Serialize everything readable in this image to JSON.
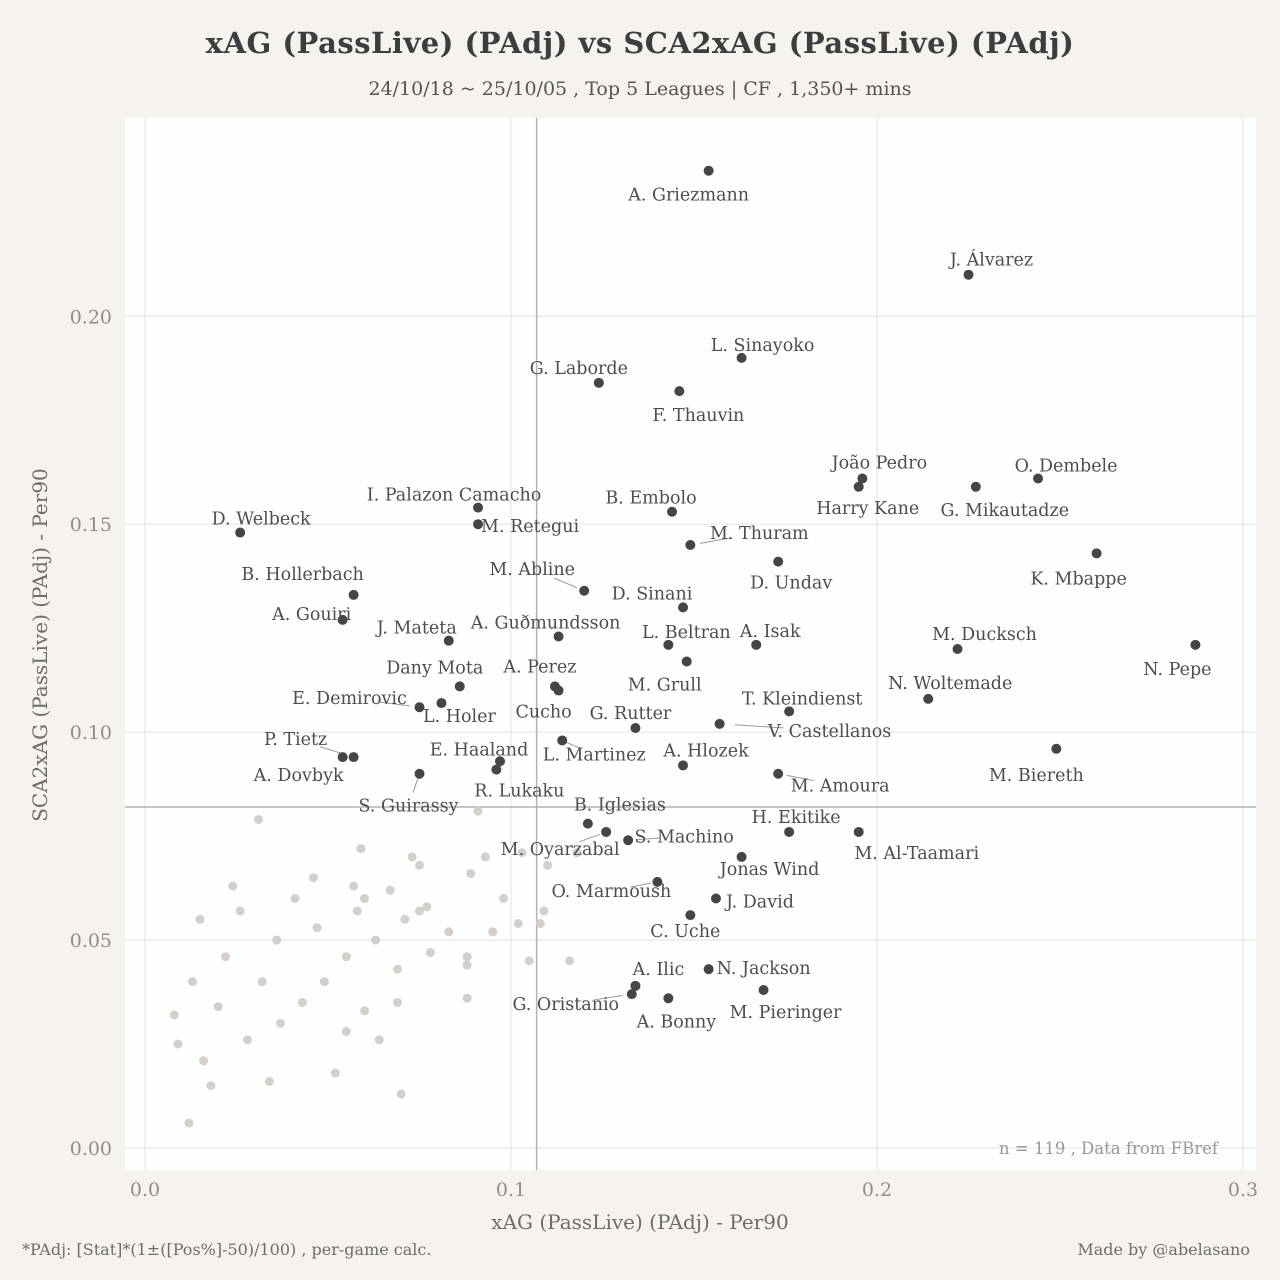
{
  "chart_data": {
    "type": "scatter",
    "title": "xAG (PassLive) (PAdj)  vs  SCA2xAG (PassLive) (PAdj)",
    "subtitle": "24/10/18 ~ 25/10/05 , Top 5 Leagues | CF , 1,350+ mins",
    "xlabel": "xAG (PassLive) (PAdj)  -  Per90",
    "ylabel": "SCA2xAG (PassLive) (PAdj)  -  Per90",
    "xlim": [
      0,
      0.3
    ],
    "ylim": [
      0,
      0.246
    ],
    "xticks": [
      0,
      0.1,
      0.2,
      0.3
    ],
    "xtick_labels": [
      "0.0",
      "0.1",
      "0.2",
      "0.3"
    ],
    "yticks": [
      0,
      0.05,
      0.1,
      0.15,
      0.2
    ],
    "ytick_labels": [
      "0.00",
      "0.05",
      "0.10",
      "0.15",
      "0.20"
    ],
    "grid": true,
    "legend": "none",
    "n": 119,
    "annotation": "n =  119  , Data from  FBref",
    "mean_lines": {
      "x": 0.107,
      "y": 0.082
    },
    "colors": {
      "background": "#f6f3ee",
      "panel": "#fefefe",
      "grid": "#ebe9e5",
      "mean_line": "#b6b3af",
      "labeled_point": "#454545",
      "unlabeled_point": "#d3d0cc",
      "point_label": "#4f4d4b",
      "tick_label": "#8f8c89",
      "annotation": "#9a9794",
      "connector": "#9a9794"
    },
    "points_labeled": [
      {
        "name": "A. Griezmann",
        "x": 0.154,
        "y": 0.235,
        "l": [
          -20,
          24
        ]
      },
      {
        "name": "J. Álvarez",
        "x": 0.225,
        "y": 0.21,
        "l": [
          23,
          -15
        ]
      },
      {
        "name": "L. Sinayoko",
        "x": 0.163,
        "y": 0.19,
        "l": [
          21,
          -13
        ]
      },
      {
        "name": "G. Laborde",
        "x": 0.124,
        "y": 0.184,
        "l": [
          -20,
          -15
        ]
      },
      {
        "name": "F. Thauvin",
        "x": 0.146,
        "y": 0.182,
        "l": [
          19,
          24
        ]
      },
      {
        "name": "João Pedro",
        "x": 0.196,
        "y": 0.161,
        "l": [
          17,
          -16
        ]
      },
      {
        "name": "Harry Kane",
        "x": 0.195,
        "y": 0.159,
        "l": [
          9,
          21
        ]
      },
      {
        "name": "O. Dembele",
        "x": 0.244,
        "y": 0.161,
        "l": [
          28,
          -13
        ]
      },
      {
        "name": "G. Mikautadze",
        "x": 0.227,
        "y": 0.159,
        "l": [
          29,
          23
        ]
      },
      {
        "name": "I. Palazon Camacho",
        "x": 0.091,
        "y": 0.154,
        "l": [
          -24,
          -13
        ]
      },
      {
        "name": "M. Retegui",
        "x": 0.091,
        "y": 0.15,
        "l": [
          52,
          2
        ]
      },
      {
        "name": "B. Embolo",
        "x": 0.144,
        "y": 0.153,
        "l": [
          -21,
          -14
        ]
      },
      {
        "name": "D. Welbeck",
        "x": 0.026,
        "y": 0.148,
        "l": [
          21,
          -14
        ]
      },
      {
        "name": "M. Thuram",
        "x": 0.149,
        "y": 0.145,
        "l": [
          69,
          -12
        ],
        "c": true
      },
      {
        "name": "D. Undav",
        "x": 0.173,
        "y": 0.141,
        "l": [
          13,
          21
        ]
      },
      {
        "name": "K. Mbappe",
        "x": 0.26,
        "y": 0.143,
        "l": [
          -18,
          25
        ]
      },
      {
        "name": "B. Hollerbach",
        "x": 0.057,
        "y": 0.133,
        "l": [
          -51,
          -21
        ]
      },
      {
        "name": "M. Abline",
        "x": 0.12,
        "y": 0.134,
        "l": [
          -52,
          -22
        ],
        "c": true
      },
      {
        "name": "D. Sinani",
        "x": 0.147,
        "y": 0.13,
        "l": [
          -31,
          -14
        ]
      },
      {
        "name": "A. Gouiri",
        "x": 0.054,
        "y": 0.127,
        "l": [
          -31,
          -6
        ]
      },
      {
        "name": "J. Mateta",
        "x": 0.083,
        "y": 0.122,
        "l": [
          -32,
          -13
        ]
      },
      {
        "name": "A. Guðmundsson",
        "x": 0.113,
        "y": 0.123,
        "l": [
          -13,
          -14
        ]
      },
      {
        "name": "L. Beltran",
        "x": 0.143,
        "y": 0.121,
        "l": [
          18,
          -13
        ]
      },
      {
        "name": "A. Isak",
        "x": 0.167,
        "y": 0.121,
        "l": [
          14,
          -14
        ]
      },
      {
        "name": "M. Ducksch",
        "x": 0.222,
        "y": 0.12,
        "l": [
          27,
          -15
        ]
      },
      {
        "name": "N. Pepe",
        "x": 0.287,
        "y": 0.121,
        "l": [
          -18,
          24
        ]
      },
      {
        "name": "Dany Mota",
        "x": 0.086,
        "y": 0.111,
        "l": [
          -25,
          -19
        ]
      },
      {
        "name": "A. Perez",
        "x": 0.112,
        "y": 0.111,
        "l": [
          -15,
          -20
        ]
      },
      {
        "name": "M. Grull",
        "x": 0.148,
        "y": 0.117,
        "l": [
          -22,
          23
        ]
      },
      {
        "name": "N. Woltemade",
        "x": 0.214,
        "y": 0.108,
        "l": [
          22,
          -16
        ]
      },
      {
        "name": "E. Demirovic",
        "x": 0.075,
        "y": 0.106,
        "l": [
          -70,
          -9
        ],
        "c": true
      },
      {
        "name": "T. Kleindienst",
        "x": 0.176,
        "y": 0.105,
        "l": [
          13,
          -13
        ]
      },
      {
        "name": "L. Holer",
        "x": 0.081,
        "y": 0.107,
        "l": [
          18,
          13
        ]
      },
      {
        "name": "Cucho",
        "x": 0.113,
        "y": 0.11,
        "l": [
          -15,
          21
        ]
      },
      {
        "name": "G. Rutter",
        "x": 0.134,
        "y": 0.101,
        "l": [
          -5,
          -15
        ]
      },
      {
        "name": "P. Tietz",
        "x": 0.057,
        "y": 0.094,
        "l": [
          -58,
          -18
        ],
        "c": true
      },
      {
        "name": "V. Castellanos",
        "x": 0.157,
        "y": 0.102,
        "l": [
          110,
          7
        ],
        "c": true
      },
      {
        "name": "E. Haaland",
        "x": 0.097,
        "y": 0.093,
        "l": [
          -21,
          -12
        ]
      },
      {
        "name": "L. Martinez",
        "x": 0.114,
        "y": 0.098,
        "l": [
          32,
          14
        ],
        "c": true
      },
      {
        "name": "A. Hlozek",
        "x": 0.147,
        "y": 0.092,
        "l": [
          23,
          -15
        ]
      },
      {
        "name": "A. Dovbyk",
        "x": 0.054,
        "y": 0.094,
        "l": [
          -44,
          18
        ]
      },
      {
        "name": "M. Amoura",
        "x": 0.173,
        "y": 0.09,
        "l": [
          62,
          12
        ],
        "c": true
      },
      {
        "name": "M. Biereth",
        "x": 0.249,
        "y": 0.096,
        "l": [
          -20,
          26
        ]
      },
      {
        "name": "R. Lukaku",
        "x": 0.096,
        "y": 0.091,
        "l": [
          23,
          21
        ]
      },
      {
        "name": "S. Guirassy",
        "x": 0.075,
        "y": 0.09,
        "l": [
          -11,
          32
        ],
        "c": true
      },
      {
        "name": "B. Iglesias",
        "x": 0.121,
        "y": 0.078,
        "l": [
          32,
          -19
        ]
      },
      {
        "name": "H. Ekitike",
        "x": 0.176,
        "y": 0.076,
        "l": [
          7,
          -15
        ]
      },
      {
        "name": "S. Machino",
        "x": 0.132,
        "y": 0.074,
        "l": [
          56,
          -4
        ],
        "c": true
      },
      {
        "name": "M. Oyarzabal",
        "x": 0.126,
        "y": 0.076,
        "l": [
          -46,
          17
        ],
        "c": true
      },
      {
        "name": "Jonas Wind",
        "x": 0.163,
        "y": 0.07,
        "l": [
          28,
          12
        ]
      },
      {
        "name": "M. Al-Taamari",
        "x": 0.195,
        "y": 0.076,
        "l": [
          58,
          21
        ]
      },
      {
        "name": "O. Marmoush",
        "x": 0.14,
        "y": 0.064,
        "l": [
          -46,
          9
        ],
        "c": true
      },
      {
        "name": "J. David",
        "x": 0.156,
        "y": 0.06,
        "l": [
          44,
          3
        ]
      },
      {
        "name": "C. Uche",
        "x": 0.149,
        "y": 0.056,
        "l": [
          -5,
          16
        ]
      },
      {
        "name": "A. Ilic",
        "x": 0.134,
        "y": 0.039,
        "l": [
          23,
          -17
        ]
      },
      {
        "name": "N. Jackson",
        "x": 0.154,
        "y": 0.043,
        "l": [
          55,
          -1
        ]
      },
      {
        "name": "G. Oristanio",
        "x": 0.133,
        "y": 0.037,
        "l": [
          -66,
          10
        ],
        "c": true
      },
      {
        "name": "M. Pieringer",
        "x": 0.169,
        "y": 0.038,
        "l": [
          22,
          22
        ]
      },
      {
        "name": "A. Bonny",
        "x": 0.143,
        "y": 0.036,
        "l": [
          8,
          23
        ]
      }
    ],
    "points_unlabeled": [
      [
        0.031,
        0.079
      ],
      [
        0.091,
        0.081
      ],
      [
        0.121,
        0.078
      ],
      [
        0.118,
        0.071
      ],
      [
        0.073,
        0.07
      ],
      [
        0.075,
        0.068
      ],
      [
        0.089,
        0.066
      ],
      [
        0.057,
        0.063
      ],
      [
        0.024,
        0.063
      ],
      [
        0.06,
        0.06
      ],
      [
        0.058,
        0.057
      ],
      [
        0.077,
        0.058
      ],
      [
        0.075,
        0.057
      ],
      [
        0.026,
        0.057
      ],
      [
        0.102,
        0.054
      ],
      [
        0.108,
        0.054
      ],
      [
        0.109,
        0.057
      ],
      [
        0.063,
        0.05
      ],
      [
        0.036,
        0.05
      ],
      [
        0.098,
        0.06
      ],
      [
        0.055,
        0.046
      ],
      [
        0.088,
        0.046
      ],
      [
        0.116,
        0.045
      ],
      [
        0.088,
        0.044
      ],
      [
        0.069,
        0.043
      ],
      [
        0.055,
        0.028
      ],
      [
        0.064,
        0.026
      ],
      [
        0.009,
        0.025
      ],
      [
        0.016,
        0.021
      ],
      [
        0.018,
        0.015
      ],
      [
        0.034,
        0.016
      ],
      [
        0.07,
        0.013
      ],
      [
        0.012,
        0.006
      ],
      [
        0.088,
        0.036
      ],
      [
        0.069,
        0.035
      ],
      [
        0.103,
        0.071
      ],
      [
        0.049,
        0.04
      ],
      [
        0.043,
        0.035
      ],
      [
        0.032,
        0.04
      ],
      [
        0.022,
        0.046
      ],
      [
        0.015,
        0.055
      ],
      [
        0.008,
        0.032
      ],
      [
        0.052,
        0.018
      ],
      [
        0.06,
        0.033
      ],
      [
        0.078,
        0.047
      ],
      [
        0.083,
        0.052
      ],
      [
        0.095,
        0.052
      ],
      [
        0.041,
        0.06
      ],
      [
        0.046,
        0.065
      ],
      [
        0.067,
        0.062
      ],
      [
        0.071,
        0.055
      ],
      [
        0.013,
        0.04
      ],
      [
        0.02,
        0.034
      ],
      [
        0.028,
        0.026
      ],
      [
        0.037,
        0.03
      ],
      [
        0.105,
        0.045
      ],
      [
        0.11,
        0.068
      ],
      [
        0.093,
        0.07
      ],
      [
        0.047,
        0.053
      ],
      [
        0.059,
        0.072
      ]
    ]
  },
  "footer": {
    "left_note": "*PAdj: [Stat]*(1±([Pos%]-50)/100) , per-game calc.",
    "right_note": "Made by @abelasano"
  }
}
